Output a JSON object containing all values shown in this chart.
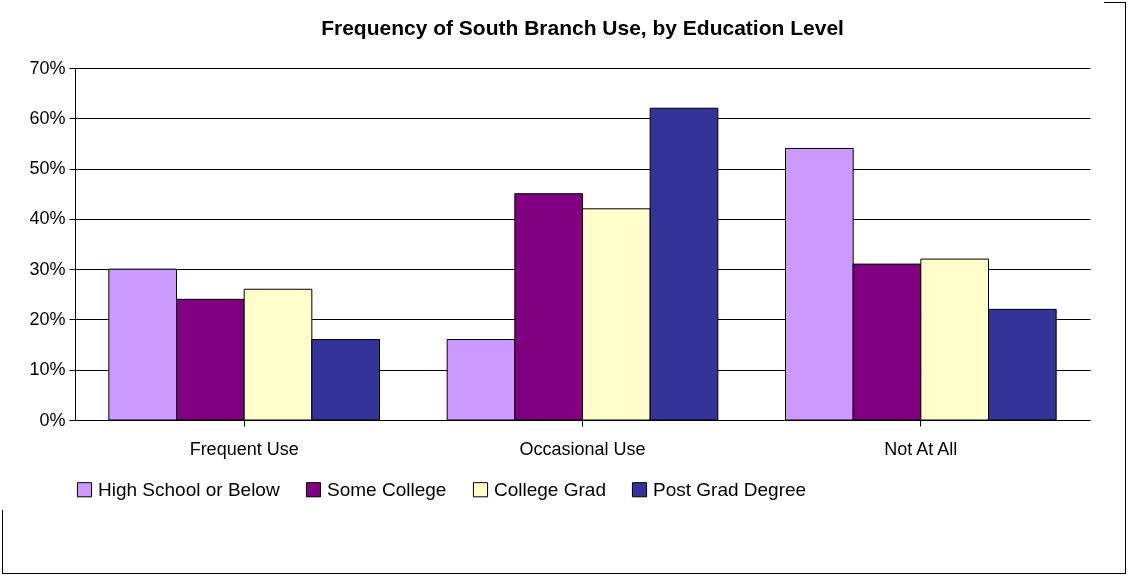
{
  "chart_data": {
    "type": "bar",
    "title": "Frequency of South Branch Use, by Education Level",
    "categories": [
      "Frequent Use",
      "Occasional Use",
      "Not At All"
    ],
    "series": [
      {
        "name": "High School or Below",
        "color": "#cc99ff",
        "values": [
          30,
          16,
          54
        ]
      },
      {
        "name": "Some College",
        "color": "#800080",
        "values": [
          24,
          45,
          31
        ]
      },
      {
        "name": "College Grad",
        "color": "#ffffcc",
        "values": [
          26,
          42,
          32
        ]
      },
      {
        "name": "Post Grad Degree",
        "color": "#333399",
        "values": [
          16,
          62,
          22
        ]
      }
    ],
    "ylim": [
      0,
      70
    ],
    "yticks": [
      {
        "value": 0,
        "label": "0%"
      },
      {
        "value": 10,
        "label": "10%"
      },
      {
        "value": 20,
        "label": "20%"
      },
      {
        "value": 30,
        "label": "30%"
      },
      {
        "value": 40,
        "label": "40%"
      },
      {
        "value": 50,
        "label": "50%"
      },
      {
        "value": 60,
        "label": "60%"
      },
      {
        "value": 70,
        "label": "70%"
      }
    ],
    "grid": "y",
    "legend": "bottom"
  }
}
